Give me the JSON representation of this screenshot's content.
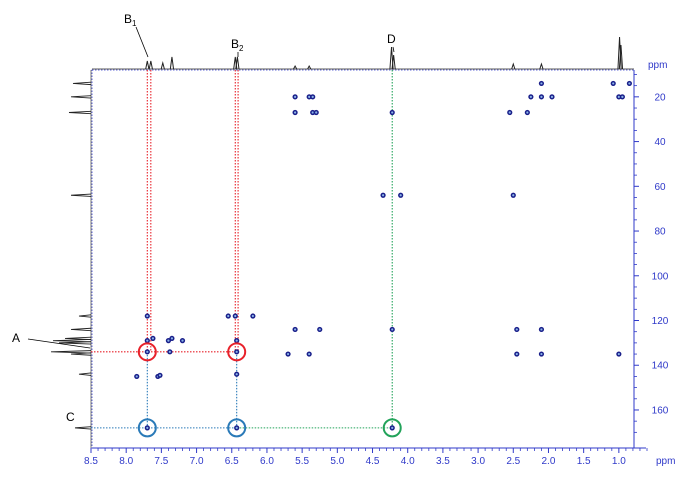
{
  "chart_data": {
    "type": "scatter",
    "subtype": "2D NMR HMBC contour spectrum",
    "x_axis": {
      "unit": "ppm",
      "range": [
        8.5,
        0.6
      ],
      "reversed": true,
      "tick_labels": [
        "8.5",
        "8.0",
        "7.5",
        "7.0",
        "6.5",
        "6.0",
        "5.5",
        "5.0",
        "4.5",
        "4.0",
        "3.5",
        "3.0",
        "2.5",
        "2.0",
        "1.5",
        "1.0"
      ],
      "tick_values": [
        8.5,
        8.0,
        7.5,
        7.0,
        6.5,
        6.0,
        5.5,
        5.0,
        4.5,
        4.0,
        3.5,
        3.0,
        2.5,
        2.0,
        1.5,
        1.0
      ]
    },
    "y_axis": {
      "unit": "ppm",
      "range": [
        8,
        177
      ],
      "reversed": true,
      "position": "right",
      "tick_labels": [
        "20",
        "40",
        "60",
        "80",
        "100",
        "120",
        "140",
        "160"
      ],
      "tick_values": [
        20,
        40,
        60,
        80,
        100,
        120,
        140,
        160
      ]
    },
    "grid": false,
    "cross_peaks": [
      {
        "x": 7.7,
        "y": 118
      },
      {
        "x": 7.7,
        "y": 129
      },
      {
        "x": 7.7,
        "y": 134
      },
      {
        "x": 7.62,
        "y": 128
      },
      {
        "x": 7.55,
        "y": 145
      },
      {
        "x": 7.52,
        "y": 144.5
      },
      {
        "x": 7.4,
        "y": 129
      },
      {
        "x": 7.38,
        "y": 134
      },
      {
        "x": 7.35,
        "y": 128
      },
      {
        "x": 7.2,
        "y": 129
      },
      {
        "x": 7.7,
        "y": 168
      },
      {
        "x": 7.85,
        "y": 145
      },
      {
        "x": 6.55,
        "y": 118
      },
      {
        "x": 6.45,
        "y": 118
      },
      {
        "x": 6.43,
        "y": 129
      },
      {
        "x": 6.43,
        "y": 134
      },
      {
        "x": 6.43,
        "y": 144
      },
      {
        "x": 6.43,
        "y": 168
      },
      {
        "x": 6.2,
        "y": 118
      },
      {
        "x": 5.6,
        "y": 20
      },
      {
        "x": 5.4,
        "y": 20
      },
      {
        "x": 5.35,
        "y": 20
      },
      {
        "x": 5.6,
        "y": 27
      },
      {
        "x": 5.35,
        "y": 27
      },
      {
        "x": 5.3,
        "y": 27
      },
      {
        "x": 5.6,
        "y": 124
      },
      {
        "x": 5.25,
        "y": 124
      },
      {
        "x": 5.7,
        "y": 135
      },
      {
        "x": 5.4,
        "y": 135
      },
      {
        "x": 4.22,
        "y": 27
      },
      {
        "x": 4.22,
        "y": 124
      },
      {
        "x": 4.22,
        "y": 168
      },
      {
        "x": 4.35,
        "y": 64
      },
      {
        "x": 4.1,
        "y": 64
      },
      {
        "x": 2.5,
        "y": 64
      },
      {
        "x": 2.55,
        "y": 27
      },
      {
        "x": 2.3,
        "y": 27
      },
      {
        "x": 2.45,
        "y": 124
      },
      {
        "x": 2.1,
        "y": 124
      },
      {
        "x": 2.45,
        "y": 135
      },
      {
        "x": 2.1,
        "y": 135
      },
      {
        "x": 2.1,
        "y": 14
      },
      {
        "x": 2.1,
        "y": 20
      },
      {
        "x": 1.95,
        "y": 20
      },
      {
        "x": 2.25,
        "y": 20
      },
      {
        "x": 1.08,
        "y": 14
      },
      {
        "x": 0.85,
        "y": 14
      },
      {
        "x": 1.0,
        "y": 20
      },
      {
        "x": 0.95,
        "y": 20
      },
      {
        "x": 1.0,
        "y": 135
      }
    ],
    "top_projection_peaks": [
      {
        "x": 7.7,
        "h": 8
      },
      {
        "x": 7.65,
        "h": 8
      },
      {
        "x": 7.48,
        "h": 6
      },
      {
        "x": 7.35,
        "h": 12
      },
      {
        "x": 6.45,
        "h": 12
      },
      {
        "x": 6.42,
        "h": 12
      },
      {
        "x": 5.6,
        "h": 3
      },
      {
        "x": 5.4,
        "h": 3
      },
      {
        "x": 4.23,
        "h": 22
      },
      {
        "x": 4.2,
        "h": 14
      },
      {
        "x": 2.5,
        "h": 5
      },
      {
        "x": 2.1,
        "h": 5
      },
      {
        "x": 0.99,
        "h": 32
      },
      {
        "x": 0.97,
        "h": 24
      }
    ],
    "left_projection_peaks": [
      {
        "y": 14,
        "h": 18
      },
      {
        "y": 20,
        "h": 20
      },
      {
        "y": 27,
        "h": 22
      },
      {
        "y": 64,
        "h": 20
      },
      {
        "y": 118,
        "h": 12
      },
      {
        "y": 124,
        "h": 20
      },
      {
        "y": 128,
        "h": 26
      },
      {
        "y": 129,
        "h": 38
      },
      {
        "y": 130,
        "h": 32
      },
      {
        "y": 134,
        "h": 40
      },
      {
        "y": 135,
        "h": 20
      },
      {
        "y": 144,
        "h": 12
      },
      {
        "y": 168,
        "h": 16
      }
    ],
    "guide_lines": [
      {
        "color": "#e8212a",
        "points": [
          [
            7.7,
            0
          ],
          [
            7.7,
            134
          ]
        ]
      },
      {
        "color": "#e8212a",
        "points": [
          [
            7.65,
            0
          ],
          [
            7.65,
            134
          ]
        ]
      },
      {
        "color": "#e8212a",
        "points": [
          [
            6.45,
            0
          ],
          [
            6.45,
            134
          ]
        ]
      },
      {
        "color": "#e8212a",
        "points": [
          [
            6.41,
            0
          ],
          [
            6.41,
            134
          ]
        ]
      },
      {
        "color": "#e8212a",
        "points": [
          [
            8.5,
            134
          ],
          [
            6.43,
            134
          ]
        ]
      },
      {
        "color": "#2a7ab8",
        "points": [
          [
            7.7,
            134
          ],
          [
            7.7,
            168
          ]
        ]
      },
      {
        "color": "#2a7ab8",
        "points": [
          [
            6.43,
            134
          ],
          [
            6.43,
            168
          ]
        ]
      },
      {
        "color": "#2a7ab8",
        "points": [
          [
            8.5,
            168
          ],
          [
            6.43,
            168
          ]
        ]
      },
      {
        "color": "#22a35a",
        "points": [
          [
            4.22,
            0
          ],
          [
            4.22,
            168
          ]
        ]
      },
      {
        "color": "#22a35a",
        "points": [
          [
            6.43,
            168
          ],
          [
            4.22,
            168
          ]
        ]
      }
    ],
    "highlight_circles": [
      {
        "x": 7.7,
        "y": 134,
        "color": "#e8212a"
      },
      {
        "x": 6.43,
        "y": 134,
        "color": "#e8212a"
      },
      {
        "x": 7.7,
        "y": 168,
        "color": "#2a7ab8"
      },
      {
        "x": 6.43,
        "y": 168,
        "color": "#2a7ab8"
      },
      {
        "x": 4.22,
        "y": 168,
        "color": "#22a35a"
      }
    ],
    "annotations": [
      {
        "id": "B1",
        "text": "B",
        "sub": "1"
      },
      {
        "id": "B2",
        "text": "B",
        "sub": "2"
      },
      {
        "id": "D",
        "text": "D",
        "sub": ""
      },
      {
        "id": "A",
        "text": "A",
        "sub": ""
      },
      {
        "id": "C",
        "text": "C",
        "sub": ""
      }
    ],
    "colors": {
      "axis": "#2f39c9",
      "peak_fill": "#1a1f8a",
      "peak_core": "#8ab4e8",
      "projection": "#222222"
    }
  }
}
